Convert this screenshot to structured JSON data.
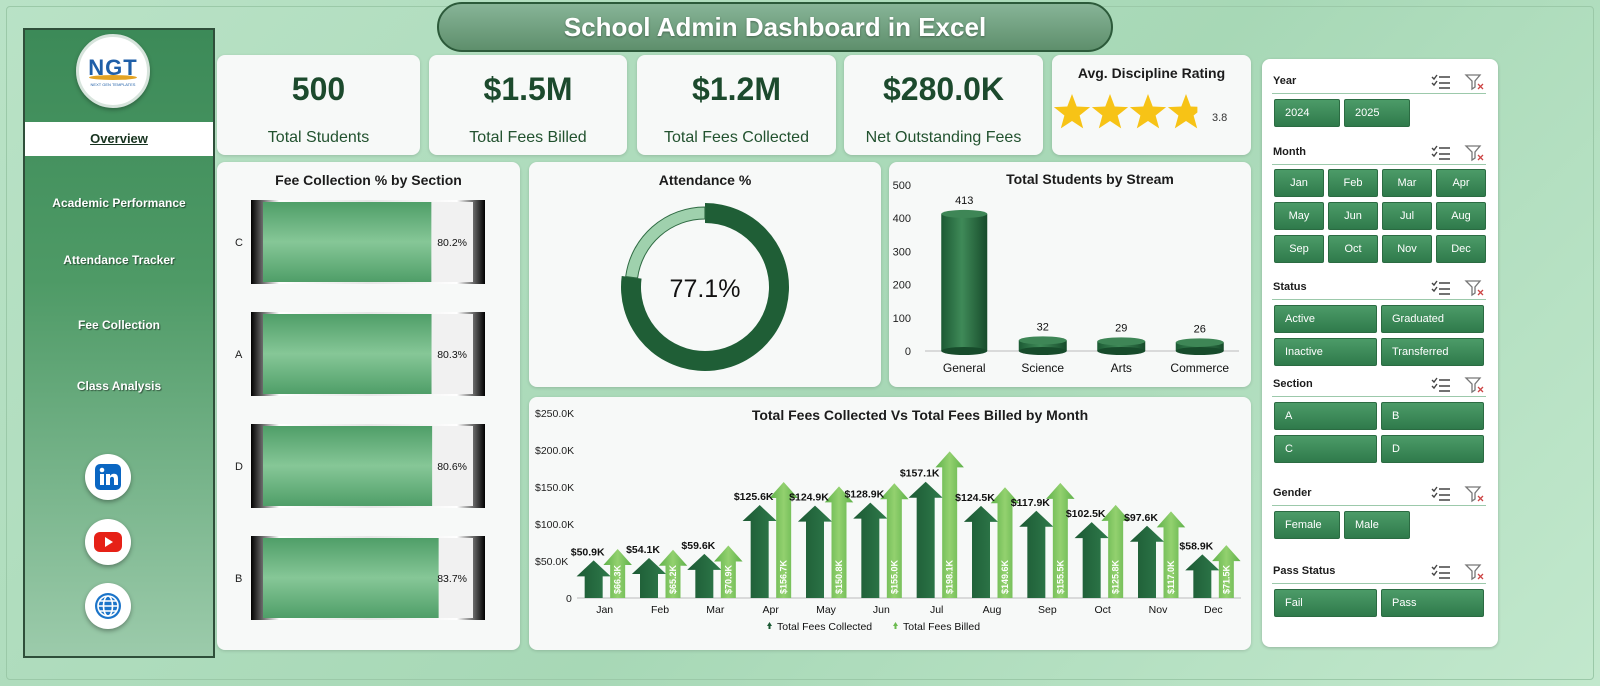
{
  "title": "School Admin Dashboard in Excel",
  "logo": {
    "main": "NGT",
    "sub": "NEXT GEN TEMPLATES"
  },
  "sidebar": {
    "items": [
      "Overview",
      "Academic Performance",
      "Attendance Tracker",
      "Fee Collection",
      "Class Analysis"
    ],
    "active": "Overview",
    "social": [
      "linkedin-icon",
      "youtube-icon",
      "globe-icon"
    ]
  },
  "kpis": [
    {
      "value": "500",
      "label": "Total Students"
    },
    {
      "value": "$1.5M",
      "label": "Total Fees Billed"
    },
    {
      "value": "$1.2M",
      "label": "Total Fees Collected"
    },
    {
      "value": "$280.0K",
      "label": "Net Outstanding Fees"
    }
  ],
  "rating": {
    "title": "Avg. Discipline Rating",
    "value": "3.8",
    "rating_value": 3.8,
    "max": 5
  },
  "colors": {
    "dark_green": "#1f5e36",
    "light_green": "#82c493",
    "accent": "#2f7a4b",
    "star": "#f7c316"
  },
  "chart_data": [
    {
      "type": "bar",
      "title": "Fee Collection % by Section",
      "categories": [
        "C",
        "A",
        "D",
        "B"
      ],
      "values": [
        80.2,
        80.3,
        80.6,
        83.7
      ],
      "labels": [
        "80.2%",
        "80.3%",
        "80.6%",
        "83.7%"
      ],
      "orientation": "horizontal",
      "xlim": [
        0,
        100
      ]
    },
    {
      "type": "pie",
      "title": "Attendance %",
      "values": [
        77.1,
        22.9
      ],
      "center_label": "77.1%"
    },
    {
      "type": "bar",
      "title": "Total Students by Stream",
      "categories": [
        "General",
        "Science",
        "Arts",
        "Commerce"
      ],
      "values": [
        413,
        32,
        29,
        26
      ],
      "yticks": [
        "0",
        "100",
        "200",
        "300",
        "400",
        "500"
      ],
      "ylim": [
        0,
        500
      ]
    },
    {
      "type": "bar",
      "title": "Total Fees Collected Vs Total Fees Billed by Month",
      "categories": [
        "Jan",
        "Feb",
        "Mar",
        "Apr",
        "May",
        "Jun",
        "Jul",
        "Aug",
        "Sep",
        "Oct",
        "Nov",
        "Dec"
      ],
      "yticks": [
        "0",
        "$50.0K",
        "$100.0K",
        "$150.0K",
        "$200.0K",
        "$250.0K"
      ],
      "ylim": [
        0,
        250
      ],
      "series": [
        {
          "name": "Total Fees Collected",
          "values": [
            50.9,
            54.1,
            59.6,
            125.6,
            124.9,
            128.9,
            157.1,
            124.5,
            117.9,
            102.5,
            97.6,
            58.9
          ],
          "labels": [
            "$50.9K",
            "$54.1K",
            "$59.6K",
            "$125.6K",
            "$124.9K",
            "$128.9K",
            "$157.1K",
            "$124.5K",
            "$117.9K",
            "$102.5K",
            "$97.6K",
            "$58.9K"
          ]
        },
        {
          "name": "Total Fees Billed",
          "values": [
            66.3,
            65.2,
            70.9,
            156.7,
            150.8,
            155.0,
            198.1,
            149.6,
            155.5,
            125.8,
            117.0,
            71.5
          ],
          "labels": [
            "$66.3K",
            "$65.2K",
            "$70.9K",
            "$156.7K",
            "$150.8K",
            "$155.0K",
            "$198.1K",
            "$149.6K",
            "$155.5K",
            "$125.8K",
            "$117.0K",
            "$71.5K"
          ]
        }
      ],
      "legend": "bottom"
    }
  ],
  "slicers": [
    {
      "title": "Year",
      "options": [
        "2024",
        "2025"
      ]
    },
    {
      "title": "Month",
      "options": [
        "Jan",
        "Feb",
        "Mar",
        "Apr",
        "May",
        "Jun",
        "Jul",
        "Aug",
        "Sep",
        "Oct",
        "Nov",
        "Dec"
      ]
    },
    {
      "title": "Status",
      "options": [
        "Active",
        "Graduated",
        "Inactive",
        "Transferred"
      ]
    },
    {
      "title": "Section",
      "options": [
        "A",
        "B",
        "C",
        "D"
      ]
    },
    {
      "title": "Gender",
      "options": [
        "Female",
        "Male"
      ]
    },
    {
      "title": "Pass Status",
      "options": [
        "Fail",
        "Pass"
      ]
    }
  ]
}
